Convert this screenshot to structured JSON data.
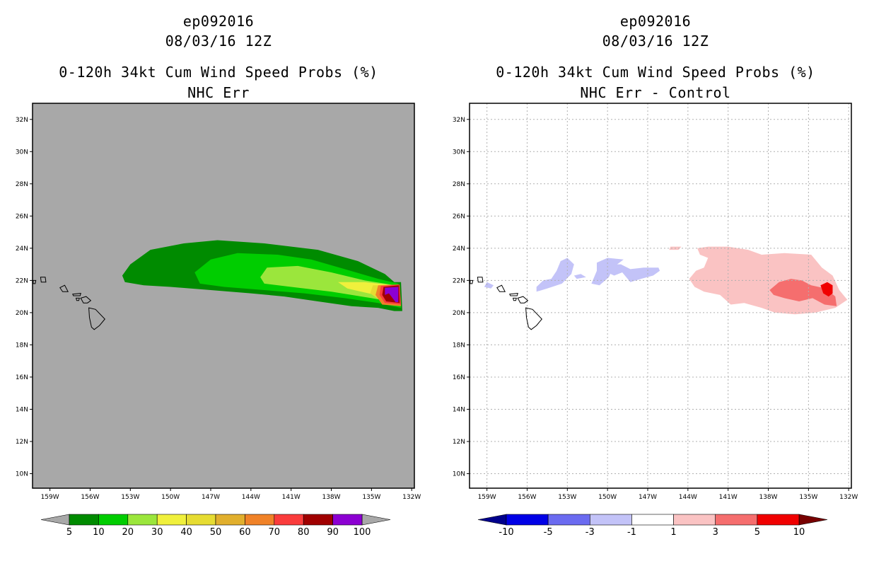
{
  "panels": [
    {
      "storm_id": "ep092016",
      "datetime": "08/03/16 12Z",
      "product": "0-120h 34kt Cum Wind Speed Probs (%)",
      "subtitle": "NHC Err",
      "colorbar": {
        "labels": [
          "5",
          "10",
          "20",
          "30",
          "40",
          "50",
          "60",
          "70",
          "80",
          "90",
          "100"
        ],
        "colors": [
          "#008b00",
          "#00cd00",
          "#9be63c",
          "#f0f03c",
          "#e6dc32",
          "#e1af2d",
          "#f08228",
          "#fa3c3c",
          "#a00000",
          "#8c00d2"
        ],
        "end_low": "#a8a8a8",
        "end_high": "#a8a8a8"
      }
    },
    {
      "storm_id": "ep092016",
      "datetime": "08/03/16 12Z",
      "product": "0-120h 34kt Cum Wind Speed Probs (%)",
      "subtitle": "NHC Err - Control",
      "colorbar": {
        "labels": [
          "-10",
          "-5",
          "-3",
          "-1",
          "1",
          "3",
          "5",
          "10"
        ],
        "colors": [
          "#0000e6",
          "#6b6bf0",
          "#c3c3f8",
          "#ffffff",
          "#fac3c3",
          "#f56e6e",
          "#f00000"
        ],
        "end_low": "#00008c",
        "end_high": "#780000"
      }
    }
  ],
  "chart_data": [
    {
      "type": "heatmap",
      "title": "0-120h 34kt Cum Wind Speed Probs (%)",
      "subtitle": "NHC Err",
      "x_tick_labels": [
        "159W",
        "156W",
        "153W",
        "150W",
        "147W",
        "144W",
        "141W",
        "138W",
        "135W",
        "132W"
      ],
      "y_tick_labels": [
        "10N",
        "12N",
        "14N",
        "16N",
        "18N",
        "20N",
        "22N",
        "24N",
        "26N",
        "28N",
        "30N",
        "32N"
      ],
      "xlim": [
        -160.3,
        -131.8
      ],
      "ylim": [
        9.1,
        33.0
      ],
      "grid": false,
      "background": "#a8a8a8",
      "contours": [
        {
          "level": 5,
          "color": "#008b00",
          "polygon": [
            [
              -153.6,
              22.3
            ],
            [
              -153,
              23
            ],
            [
              -151.5,
              23.9
            ],
            [
              -149,
              24.3
            ],
            [
              -146.5,
              24.5
            ],
            [
              -143,
              24.3
            ],
            [
              -139,
              23.9
            ],
            [
              -136,
              23.2
            ],
            [
              -134,
              22.4
            ],
            [
              -133.3,
              21.9
            ],
            [
              -132.8,
              21.9
            ],
            [
              -132.7,
              20.1
            ],
            [
              -133.3,
              20.1
            ],
            [
              -134.5,
              20.3
            ],
            [
              -136.5,
              20.4
            ],
            [
              -139,
              20.7
            ],
            [
              -141.5,
              21
            ],
            [
              -144,
              21.2
            ],
            [
              -147,
              21.4
            ],
            [
              -150,
              21.6
            ],
            [
              -152,
              21.7
            ],
            [
              -153.4,
              21.9
            ]
          ]
        },
        {
          "level": 10,
          "color": "#00cd00",
          "polygon": [
            [
              -148.2,
              22.5
            ],
            [
              -147,
              23.3
            ],
            [
              -145,
              23.7
            ],
            [
              -142,
              23.6
            ],
            [
              -139.5,
              23.3
            ],
            [
              -137,
              22.7
            ],
            [
              -134.5,
              22.1
            ],
            [
              -133,
              21.8
            ],
            [
              -132.8,
              20.3
            ],
            [
              -134.5,
              20.6
            ],
            [
              -137,
              20.9
            ],
            [
              -140,
              21.2
            ],
            [
              -143,
              21.4
            ],
            [
              -146,
              21.6
            ],
            [
              -147.8,
              21.8
            ]
          ]
        },
        {
          "level": 20,
          "color": "#9be63c",
          "polygon": [
            [
              -143.3,
              22.2
            ],
            [
              -142.8,
              22.8
            ],
            [
              -140.5,
              22.9
            ],
            [
              -138,
              22.5
            ],
            [
              -135.5,
              22
            ],
            [
              -133.2,
              21.7
            ],
            [
              -133,
              20.6
            ],
            [
              -135,
              20.9
            ],
            [
              -138,
              21.3
            ],
            [
              -141,
              21.6
            ],
            [
              -143,
              21.8
            ]
          ]
        },
        {
          "level": 30,
          "color": "#f0f03c",
          "polygon": [
            [
              -137.5,
              21.9
            ],
            [
              -135.5,
              21.9
            ],
            [
              -133.4,
              21.7
            ],
            [
              -133,
              20.8
            ],
            [
              -134.7,
              21.1
            ],
            [
              -136.8,
              21.5
            ]
          ]
        },
        {
          "level": 40,
          "color": "#e6dc32",
          "polygon": [
            [
              -134.9,
              21.7
            ],
            [
              -133.2,
              21.7
            ],
            [
              -133,
              20.6
            ],
            [
              -134.4,
              20.8
            ],
            [
              -135.1,
              21.2
            ]
          ]
        },
        {
          "level": 60,
          "color": "#f08228",
          "polygon": [
            [
              -134.5,
              21.7
            ],
            [
              -133,
              21.75
            ],
            [
              -132.8,
              20.4
            ],
            [
              -134.2,
              20.5
            ],
            [
              -134.7,
              21.1
            ]
          ]
        },
        {
          "level": 70,
          "color": "#fa3c3c",
          "polygon": [
            [
              -134.3,
              21.65
            ],
            [
              -132.9,
              21.75
            ],
            [
              -132.8,
              20.5
            ],
            [
              -134,
              20.6
            ],
            [
              -134.4,
              21.1
            ]
          ]
        },
        {
          "level": 80,
          "color": "#a00000",
          "polygon": [
            [
              -134.1,
              21.6
            ],
            [
              -132.95,
              21.7
            ],
            [
              -132.9,
              20.6
            ],
            [
              -133.9,
              20.7
            ],
            [
              -134.2,
              21.1
            ]
          ]
        },
        {
          "level": 90,
          "color": "#8c00d2",
          "polygon": [
            [
              -134.0,
              21.55
            ],
            [
              -133.0,
              21.6
            ],
            [
              -133.0,
              20.65
            ],
            [
              -133.2,
              20.65
            ],
            [
              -133.7,
              21.2
            ],
            [
              -134.0,
              21.1
            ]
          ]
        }
      ]
    },
    {
      "type": "heatmap",
      "title": "0-120h 34kt Cum Wind Speed Probs (%)",
      "subtitle": "NHC Err - Control",
      "x_tick_labels": [
        "159W",
        "156W",
        "153W",
        "150W",
        "147W",
        "144W",
        "141W",
        "138W",
        "135W",
        "132W"
      ],
      "y_tick_labels": [
        "10N",
        "12N",
        "14N",
        "16N",
        "18N",
        "20N",
        "22N",
        "24N",
        "26N",
        "28N",
        "30N",
        "32N"
      ],
      "xlim": [
        -160.3,
        -131.8
      ],
      "ylim": [
        9.1,
        33.0
      ],
      "grid": true,
      "background": "#ffffff",
      "contours": [
        {
          "level": -3,
          "color": "#c3c3f8",
          "polygon": [
            [
              -155.3,
              21.6
            ],
            [
              -154.8,
              22.0
            ],
            [
              -154.2,
              22.1
            ],
            [
              -153.8,
              22.6
            ],
            [
              -153.5,
              23.2
            ],
            [
              -153.0,
              23.4
            ],
            [
              -152.5,
              23.0
            ],
            [
              -152.7,
              22.4
            ],
            [
              -153.4,
              21.8
            ],
            [
              -154.5,
              21.5
            ],
            [
              -155.3,
              21.3
            ]
          ]
        },
        {
          "level": -3,
          "color": "#c3c3f8",
          "polygon": [
            [
              -152.5,
              22.3
            ],
            [
              -152.0,
              22.4
            ],
            [
              -151.6,
              22.2
            ],
            [
              -152.3,
              22.1
            ]
          ]
        },
        {
          "level": -3,
          "color": "#c3c3f8",
          "polygon": [
            [
              -151.2,
              21.8
            ],
            [
              -150.8,
              22.6
            ],
            [
              -150.8,
              23.1
            ],
            [
              -150.0,
              23.4
            ],
            [
              -148.8,
              23.3
            ],
            [
              -149.6,
              22.8
            ],
            [
              -149.9,
              22.2
            ],
            [
              -150.6,
              21.7
            ]
          ]
        },
        {
          "level": -3,
          "color": "#c3c3f8",
          "polygon": [
            [
              -150.3,
              22.6
            ],
            [
              -149.9,
              23.0
            ],
            [
              -149.0,
              23.0
            ],
            [
              -148.3,
              22.7
            ],
            [
              -147.3,
              22.8
            ],
            [
              -146.2,
              22.8
            ],
            [
              -146.1,
              22.6
            ],
            [
              -146.6,
              22.3
            ],
            [
              -147.5,
              22.1
            ],
            [
              -148.3,
              21.9
            ],
            [
              -148.9,
              22.5
            ],
            [
              -149.5,
              22.3
            ]
          ]
        },
        {
          "level": -3,
          "color": "#c3c3f8",
          "polygon": [
            [
              -159.0,
              21.9
            ],
            [
              -158.5,
              21.7
            ],
            [
              -158.7,
              21.5
            ],
            [
              -159.2,
              21.6
            ]
          ]
        },
        {
          "level": 1,
          "color": "#fac3c3",
          "polygon": [
            [
              -143.3,
              24.0
            ],
            [
              -142.5,
              24.1
            ],
            [
              -141.0,
              24.1
            ],
            [
              -139.5,
              23.9
            ],
            [
              -138.5,
              23.6
            ],
            [
              -136.8,
              23.7
            ],
            [
              -134.8,
              23.6
            ],
            [
              -134.0,
              22.8
            ],
            [
              -133.2,
              22.3
            ],
            [
              -132.7,
              21.4
            ],
            [
              -132.1,
              20.8
            ],
            [
              -133.0,
              20.3
            ],
            [
              -134.5,
              20.0
            ],
            [
              -136.0,
              19.9
            ],
            [
              -137.5,
              20.0
            ],
            [
              -138.5,
              20.3
            ],
            [
              -139.8,
              20.6
            ],
            [
              -140.8,
              20.5
            ],
            [
              -141.6,
              21.1
            ],
            [
              -142.8,
              21.3
            ],
            [
              -143.5,
              21.6
            ],
            [
              -143.9,
              22.1
            ],
            [
              -143.4,
              22.6
            ],
            [
              -142.8,
              22.8
            ],
            [
              -142.5,
              23.4
            ],
            [
              -143.1,
              23.6
            ]
          ]
        },
        {
          "level": 1,
          "color": "#fac3c3",
          "polygon": [
            [
              -145.3,
              24.1
            ],
            [
              -144.5,
              24.1
            ],
            [
              -144.7,
              23.9
            ],
            [
              -145.4,
              23.9
            ]
          ]
        },
        {
          "level": 3,
          "color": "#f56e6e",
          "polygon": [
            [
              -137.9,
              21.4
            ],
            [
              -137.2,
              21.9
            ],
            [
              -136.3,
              22.1
            ],
            [
              -135.5,
              22.0
            ],
            [
              -134.8,
              21.7
            ],
            [
              -133.7,
              21.5
            ],
            [
              -133.0,
              21.0
            ],
            [
              -132.9,
              20.4
            ],
            [
              -133.8,
              20.5
            ],
            [
              -134.7,
              20.9
            ],
            [
              -135.7,
              20.7
            ],
            [
              -136.8,
              20.9
            ],
            [
              -137.6,
              21.1
            ]
          ]
        },
        {
          "level": 5,
          "color": "#f00000",
          "polygon": [
            [
              -134.1,
              21.7
            ],
            [
              -133.6,
              21.9
            ],
            [
              -133.2,
              21.7
            ],
            [
              -133.2,
              21.2
            ],
            [
              -133.5,
              21.0
            ],
            [
              -133.9,
              21.2
            ]
          ]
        }
      ]
    }
  ]
}
